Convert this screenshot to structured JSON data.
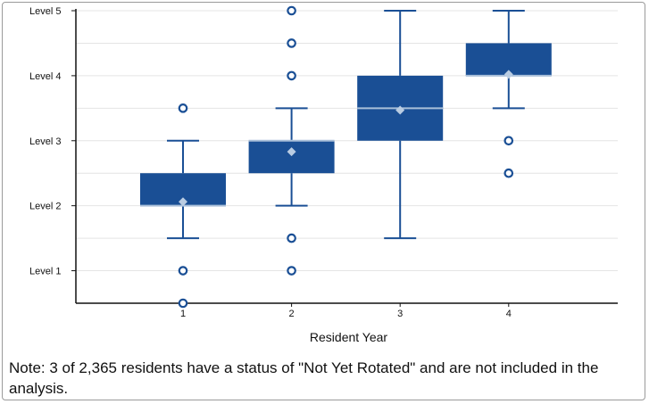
{
  "chart_data": {
    "type": "boxplot",
    "xlabel": "Resident Year",
    "ylabel": "",
    "ylim": [
      0.5,
      5
    ],
    "y_ticks": [
      {
        "value": 1,
        "label": "Level 1"
      },
      {
        "value": 2,
        "label": "Level 2"
      },
      {
        "value": 3,
        "label": "Level 3"
      },
      {
        "value": 4,
        "label": "Level 4"
      },
      {
        "value": 5,
        "label": "Level 5"
      }
    ],
    "categories": [
      "1",
      "2",
      "3",
      "4"
    ],
    "boxes": [
      {
        "category": "1",
        "whisker_low": 1.5,
        "q1": 2.0,
        "median": 2.0,
        "q3": 2.5,
        "whisker_high": 3.0,
        "mean": 2.06,
        "outliers": [
          3.5,
          1.0,
          0.5
        ]
      },
      {
        "category": "2",
        "whisker_low": 2.0,
        "q1": 2.5,
        "median": 3.0,
        "q3": 3.0,
        "whisker_high": 3.5,
        "mean": 2.83,
        "outliers": [
          5.0,
          4.5,
          4.0,
          1.5,
          1.0
        ]
      },
      {
        "category": "3",
        "whisker_low": 1.5,
        "q1": 3.0,
        "median": 3.5,
        "q3": 4.0,
        "whisker_high": 5.0,
        "mean": 3.47,
        "outliers": []
      },
      {
        "category": "4",
        "whisker_low": 3.5,
        "q1": 4.0,
        "median": 4.0,
        "q3": 4.5,
        "whisker_high": 5.0,
        "mean": 4.02,
        "outliers": [
          3.0,
          2.5
        ]
      }
    ],
    "grid": true,
    "colors": {
      "box": "#1a4f95",
      "median": "#a9bfd9",
      "mean": "#b9cce2",
      "grid": "#e4e4e4"
    }
  },
  "note": "Note: 3 of 2,365 residents have a status of \"Not Yet Rotated\" and are not included in the analysis."
}
